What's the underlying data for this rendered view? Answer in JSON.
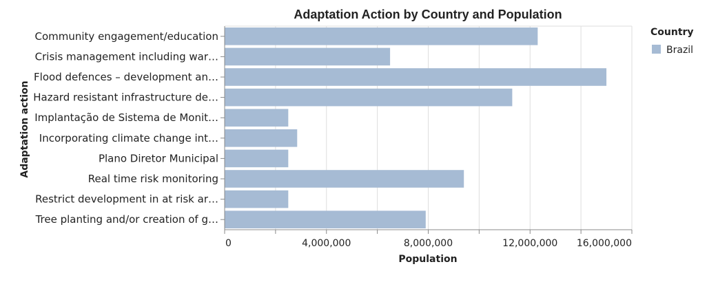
{
  "chart_data": {
    "type": "bar",
    "orientation": "horizontal",
    "title": "Adaptation Action by Country and Population",
    "xlabel": "Population",
    "ylabel": "Adaptation action",
    "xlim": [
      0,
      16000000
    ],
    "xticks": [
      0,
      4000000,
      8000000,
      12000000,
      16000000
    ],
    "xtick_labels": [
      "0",
      "4,000,000",
      "8,000,000",
      "12,000,000",
      "16,000,000"
    ],
    "grid": true,
    "legend_position": "right",
    "legend_title": "Country",
    "colors": {
      "bar": "#a6bbd4",
      "grid": "#dddddd",
      "axis": "#888888"
    },
    "categories": [
      "Community engagement/education",
      "Crisis management including war…",
      "Flood defences – development an…",
      "Hazard resistant infrastructure de…",
      "Implantação de Sistema de Monit…",
      "Incorporating climate change int…",
      "Plano Diretor Municipal",
      "Real time risk monitoring",
      "Restrict development in at risk ar…",
      "Tree planting and/or creation of g…"
    ],
    "series": [
      {
        "name": "Brazil",
        "values": [
          12300000,
          6500000,
          15000000,
          11300000,
          2500000,
          2850000,
          2500000,
          9400000,
          2500000,
          7900000
        ]
      }
    ]
  }
}
